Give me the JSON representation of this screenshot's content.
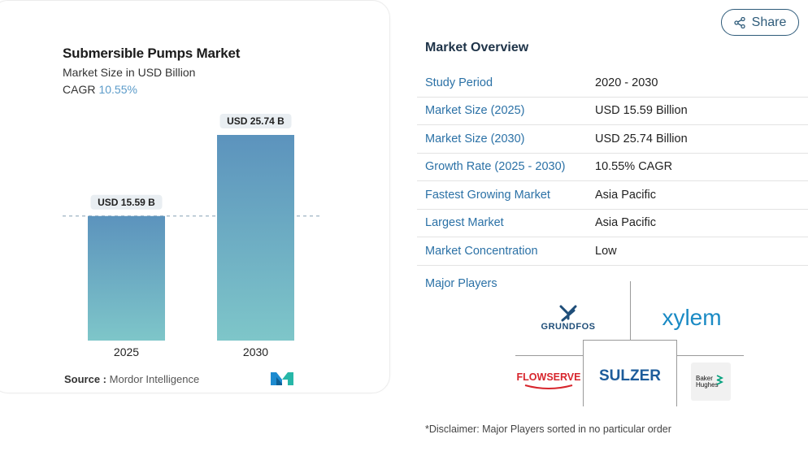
{
  "chart": {
    "title": "Submersible Pumps Market",
    "subtitle": "Market Size in USD Billion",
    "cagr_label": "CAGR",
    "cagr_value": "10.55%",
    "source_label": "Source :",
    "source_value": "Mordor Intelligence"
  },
  "chart_data": {
    "type": "bar",
    "title": "Submersible Pumps Market",
    "ylabel": "Market Size in USD Billion",
    "categories": [
      "2025",
      "2030"
    ],
    "values": [
      15.59,
      25.74
    ],
    "data_labels": [
      "USD 15.59 B",
      "USD 25.74 B"
    ],
    "ylim": [
      0,
      25.74
    ],
    "reference_line": 15.59,
    "bar_color_top": "#5c93bd",
    "bar_color_bottom": "#7ec6c9"
  },
  "share": {
    "label": "Share"
  },
  "overview": {
    "title": "Market Overview",
    "rows": [
      {
        "label": "Study Period",
        "value": "2020 - 2030"
      },
      {
        "label": "Market Size (2025)",
        "value": "USD 15.59 Billion"
      },
      {
        "label": "Market Size (2030)",
        "value": "USD 25.74 Billion"
      },
      {
        "label": "Growth Rate (2025 - 2030)",
        "value": "10.55% CAGR"
      },
      {
        "label": "Fastest Growing Market",
        "value": "Asia Pacific"
      },
      {
        "label": "Largest Market",
        "value": "Asia Pacific"
      },
      {
        "label": "Market Concentration",
        "value": "Low"
      }
    ]
  },
  "players": {
    "label": "Major Players",
    "logos": [
      "GRUNDFOS",
      "xylem",
      "SULZER",
      "FLOWSERVE",
      "Baker Hughes"
    ],
    "baker_line1": "Baker",
    "baker_line2": "Hughes"
  },
  "disclaimer": "*Disclaimer: Major Players sorted in no particular order"
}
